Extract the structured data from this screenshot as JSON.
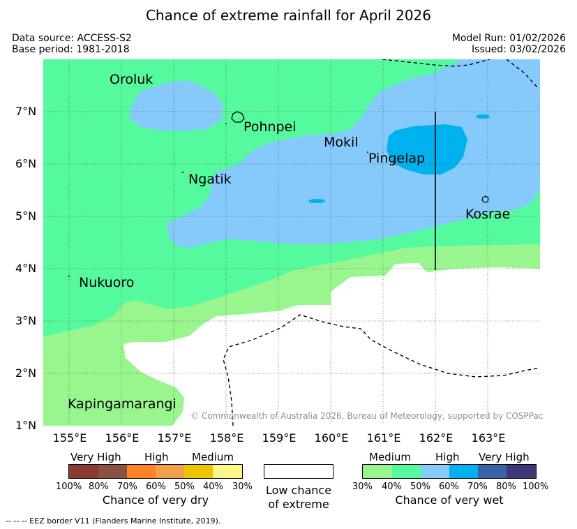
{
  "title": "Chance of extreme rainfall for April 2026",
  "header": {
    "data_source": "Data source: ACCESS-S2",
    "base_period": "Base period: 1981-2018",
    "model_run": "Model Run: 01/02/2026",
    "issued": "Issued: 03/02/2026"
  },
  "map": {
    "lat_labels": [
      "7°N",
      "6°N",
      "5°N",
      "4°N",
      "3°N",
      "2°N",
      "1°N"
    ],
    "lon_labels": [
      "155°E",
      "156°E",
      "157°E",
      "158°E",
      "159°E",
      "160°E",
      "161°E",
      "162°E",
      "163°E"
    ],
    "places": {
      "oroluk": "Oroluk",
      "pohnpei": "Pohnpei",
      "mokil": "Mokil",
      "pingelap": "Pingelap",
      "ngatik": "Ngatik",
      "kosrae": "Kosrae",
      "nukuoro": "Nukuoro",
      "kapingamarangi": "Kapingamarangi"
    },
    "copyright": "© Commonwealth of Australia 2026, Bureau of Meteorology, supported by COSPPac",
    "colors": {
      "wet_medium": "#99f68f",
      "wet_40": "#55fa9e",
      "wet_high": "#86c9fb",
      "wet_70": "#00b1ef",
      "land_sea_white": "#ffffff"
    }
  },
  "legend": {
    "dry": {
      "headers": [
        "Very High",
        "High",
        "Medium"
      ],
      "ticks": [
        "100%",
        "80%",
        "70%",
        "60%",
        "50%",
        "40%",
        "30%"
      ],
      "colors": [
        "#8b3a33",
        "#8a5040",
        "#fd8127",
        "#f0a04a",
        "#ecc600",
        "#fbf58a"
      ],
      "caption": "Chance of very dry"
    },
    "low": {
      "caption_line1": "Low chance",
      "caption_line2": "of extreme"
    },
    "wet": {
      "headers": [
        "Medium",
        "High",
        "Very High"
      ],
      "ticks": [
        "30%",
        "40%",
        "50%",
        "60%",
        "70%",
        "80%",
        "100%"
      ],
      "colors": [
        "#99f68f",
        "#55fa9e",
        "#86c9fb",
        "#00b1ef",
        "#3a64a6",
        "#3d3979"
      ],
      "caption": "Chance of very wet"
    }
  },
  "footnote": "--  --  -- EEZ border V11 (Flanders Marine Institute, 2019)."
}
